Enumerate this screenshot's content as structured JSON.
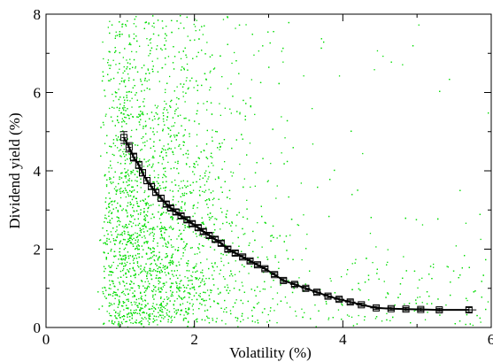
{
  "chart_data": {
    "type": "scatter",
    "title": "",
    "xlabel": "Volatility (%)",
    "ylabel": "Dividend yield (%)",
    "xlim": [
      0,
      6
    ],
    "ylim": [
      0,
      8
    ],
    "xticks": [
      "0",
      "2",
      "4",
      "6"
    ],
    "yticks": [
      "0",
      "2",
      "4",
      "6",
      "8"
    ],
    "grid": false,
    "legend": "none",
    "colors": {
      "scatter": "#00dd00",
      "binned": "#000000",
      "axes": "#000000"
    },
    "series": [
      {
        "kind": "scatter-cloud",
        "description_visible": "dense green dot cloud, concentrated at volatility 1-3 %, yields 0-8 %",
        "x_range": [
          0.65,
          6
        ],
        "y_range": [
          0,
          8
        ]
      },
      {
        "kind": "binned-mean-with-error",
        "x": [
          1.05,
          1.12,
          1.18,
          1.25,
          1.3,
          1.36,
          1.42,
          1.48,
          1.55,
          1.62,
          1.68,
          1.75,
          1.82,
          1.9,
          1.97,
          2.05,
          2.12,
          2.2,
          2.28,
          2.36,
          2.45,
          2.55,
          2.65,
          2.75,
          2.85,
          2.95,
          3.08,
          3.2,
          3.35,
          3.5,
          3.65,
          3.8,
          3.95,
          4.1,
          4.25,
          4.45,
          4.65,
          4.85,
          5.05,
          5.3,
          5.7
        ],
        "y": [
          4.85,
          4.6,
          4.35,
          4.15,
          3.95,
          3.75,
          3.6,
          3.45,
          3.3,
          3.15,
          3.05,
          2.95,
          2.85,
          2.75,
          2.65,
          2.55,
          2.45,
          2.35,
          2.25,
          2.15,
          2.0,
          1.9,
          1.8,
          1.7,
          1.6,
          1.5,
          1.35,
          1.2,
          1.1,
          1.0,
          0.9,
          0.8,
          0.72,
          0.65,
          0.58,
          0.5,
          0.48,
          0.47,
          0.46,
          0.45,
          0.45
        ],
        "yerr": [
          0.15,
          0.12,
          0.1,
          0.09,
          0.08,
          0.08,
          0.07,
          0.07,
          0.07,
          0.06,
          0.06,
          0.06,
          0.06,
          0.06,
          0.06,
          0.06,
          0.06,
          0.06,
          0.06,
          0.06,
          0.06,
          0.06,
          0.05,
          0.05,
          0.05,
          0.05,
          0.05,
          0.05,
          0.05,
          0.05,
          0.05,
          0.05,
          0.05,
          0.05,
          0.04,
          0.04,
          0.04,
          0.04,
          0.04,
          0.04,
          0.06
        ],
        "xerr": [
          0.03,
          0.03,
          0.03,
          0.03,
          0.03,
          0.03,
          0.03,
          0.03,
          0.03,
          0.03,
          0.03,
          0.03,
          0.03,
          0.03,
          0.03,
          0.03,
          0.03,
          0.03,
          0.03,
          0.03,
          0.04,
          0.04,
          0.04,
          0.04,
          0.04,
          0.04,
          0.05,
          0.05,
          0.06,
          0.06,
          0.06,
          0.06,
          0.07,
          0.07,
          0.07,
          0.08,
          0.08,
          0.09,
          0.1,
          0.1,
          0.1
        ]
      }
    ]
  }
}
